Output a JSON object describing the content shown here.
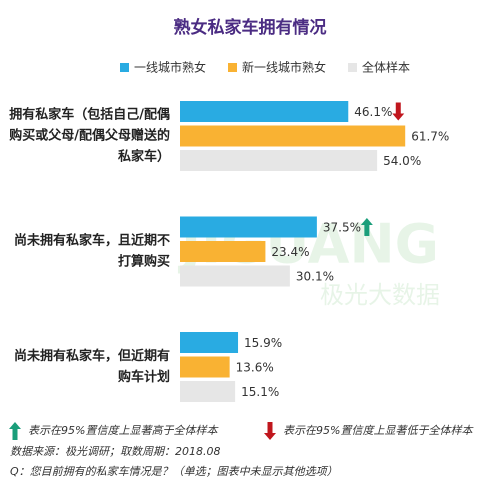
{
  "chart_data": {
    "type": "hbar",
    "title": "熟女私家车拥有情况",
    "categories": [
      [
        "拥有私家车（包括自己/配偶",
        "购买或父母/配偶父母赠送的",
        "私家车）"
      ],
      [
        "尚未拥有私家车，且近期不",
        "打算购买"
      ],
      [
        "尚未拥有私家车，但近期有",
        "购车计划"
      ]
    ],
    "series": [
      {
        "name": "一线城市熟女",
        "color": "#29abe2",
        "values": [
          46.1,
          37.5,
          15.9
        ],
        "value_labels": [
          "46.1%",
          "37.5%",
          "15.9%"
        ],
        "markers": [
          "down",
          "up",
          null
        ]
      },
      {
        "name": "新一线城市熟女",
        "color": "#f9b233",
        "values": [
          61.7,
          23.4,
          13.6
        ],
        "value_labels": [
          "61.7%",
          "23.4%",
          "13.6%"
        ]
      },
      {
        "name": "全体样本",
        "color": "#e6e6e6",
        "values": [
          54.0,
          30.1,
          15.1
        ],
        "value_labels": [
          "54.0%",
          "30.1%",
          "15.1%"
        ]
      }
    ],
    "notes": {
      "up": "表示在95%置信度上显著高于全体样本",
      "down": "表示在95%置信度上显著低于全体样本"
    },
    "source": "数据来源：极光调研；取数周期：2018.08",
    "question": "Q：您目前拥有的私家车情况是？（单选；图表中未显示其他选项）",
    "watermark": [
      "JIGUANG",
      "极光大数据"
    ]
  }
}
